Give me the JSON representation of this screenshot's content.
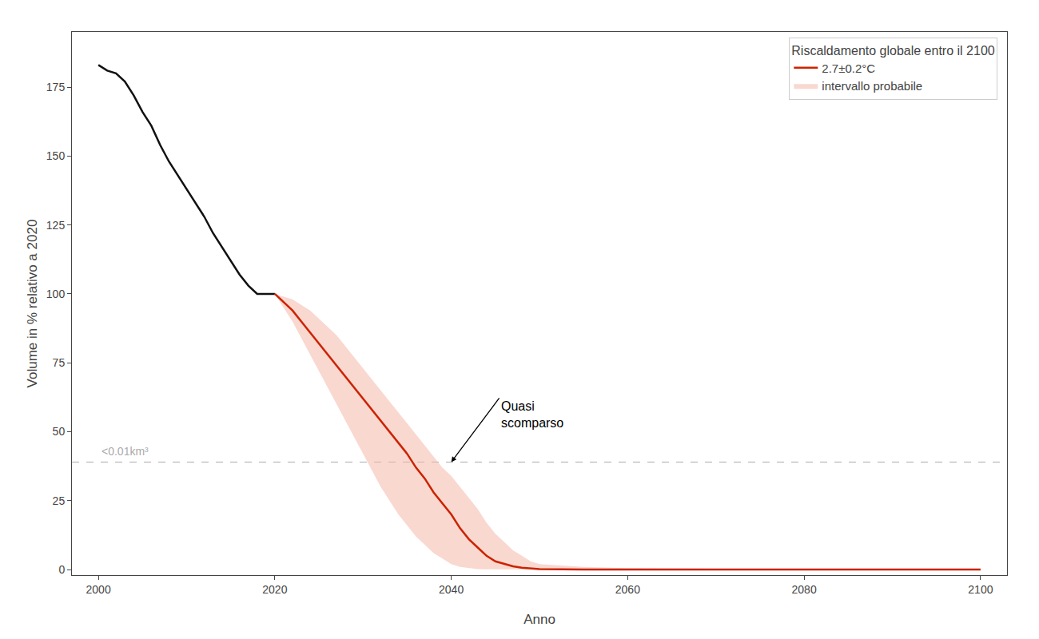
{
  "chart_data": {
    "type": "line",
    "title": "Riscaldamento globale entro il 2100",
    "xlabel": "Anno",
    "ylabel": "Volume in % relativo a 2020",
    "xlim": [
      1997,
      2103
    ],
    "ylim": [
      -2,
      195
    ],
    "xticks": [
      2000,
      2020,
      2040,
      2060,
      2080,
      2100
    ],
    "yticks": [
      0,
      25,
      50,
      75,
      100,
      125,
      150,
      175
    ],
    "grid": false,
    "legend": "upper right",
    "series": [
      {
        "type": "band",
        "name": "intervallo probabile",
        "color": "#f4b8aa",
        "x": [
          2020,
          2021,
          2022,
          2023,
          2024,
          2025,
          2026,
          2027,
          2028,
          2029,
          2030,
          2031,
          2032,
          2033,
          2034,
          2035,
          2036,
          2037,
          2038,
          2039,
          2040,
          2041,
          2042,
          2043,
          2044,
          2045,
          2046,
          2047,
          2048,
          2049,
          2050,
          2055,
          2060,
          2070,
          2080,
          2090,
          2100
        ],
        "lower": [
          100,
          95,
          90,
          84,
          78,
          72,
          66,
          60,
          54,
          48,
          42,
          36,
          30,
          25,
          20,
          16,
          12,
          9,
          6,
          4,
          2,
          1,
          0.5,
          0.2,
          0.1,
          0.05,
          0.02,
          0.01,
          0.005,
          0.002,
          0.001,
          0.0,
          0.0,
          0.0,
          0.0,
          0.0,
          0.0
        ],
        "upper": [
          100,
          99,
          98,
          96,
          94,
          91,
          88,
          85,
          81,
          77,
          73,
          69,
          65,
          61,
          57,
          53,
          49,
          45,
          41,
          37,
          34,
          30,
          26,
          22,
          17,
          13,
          10,
          7,
          5,
          3,
          2,
          1,
          0.5,
          0.2,
          0.1,
          0.05,
          0.02
        ]
      },
      {
        "type": "line",
        "color": "#111111",
        "x": [
          2000,
          2001,
          2002,
          2003,
          2004,
          2005,
          2006,
          2007,
          2008,
          2009,
          2010,
          2011,
          2012,
          2013,
          2014,
          2015,
          2016,
          2017,
          2018,
          2019,
          2020
        ],
        "values": [
          183,
          181,
          180,
          177,
          172,
          166,
          161,
          154,
          148,
          143,
          138,
          133,
          128,
          122,
          117,
          112,
          107,
          103,
          100,
          100,
          100
        ]
      },
      {
        "type": "line",
        "name": "2.7±0.2°C",
        "color": "#cc2200",
        "x": [
          2020,
          2021,
          2022,
          2023,
          2024,
          2025,
          2026,
          2027,
          2028,
          2029,
          2030,
          2031,
          2032,
          2033,
          2034,
          2035,
          2036,
          2037,
          2038,
          2039,
          2040,
          2041,
          2042,
          2043,
          2044,
          2045,
          2046,
          2047,
          2048,
          2049,
          2050,
          2055,
          2060,
          2070,
          2080,
          2090,
          2100
        ],
        "values": [
          100,
          97,
          94,
          90,
          86,
          82,
          78,
          74,
          70,
          66,
          62,
          58,
          54,
          50,
          46,
          42,
          37,
          33,
          28,
          24,
          20,
          15,
          11,
          8,
          5,
          3,
          2,
          1.2,
          0.7,
          0.4,
          0.2,
          0.05,
          0.02,
          0.01,
          0.005,
          0.002,
          0.001
        ]
      }
    ],
    "threshold": {
      "value": 39.0,
      "label": "<0.01km³",
      "color": "#aaaaaa",
      "line_style": "dashed"
    },
    "annotations": [
      {
        "text": "Quasi\nscomparso",
        "x": 2040,
        "y": 39.0
      }
    ]
  }
}
